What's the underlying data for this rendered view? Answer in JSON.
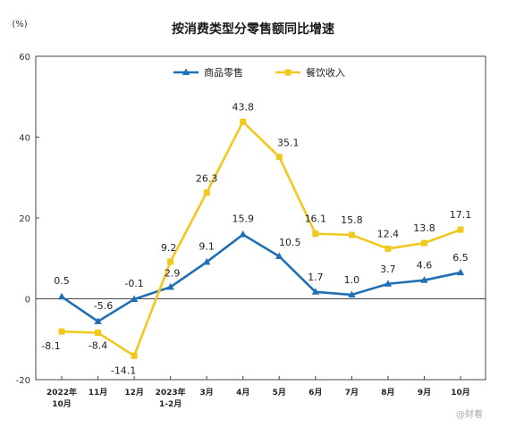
{
  "chart_data": {
    "type": "line",
    "title": "按消费类型分零售额同比增速",
    "unit": "(%)",
    "categories": [
      [
        "2022年",
        "10月"
      ],
      [
        "11月"
      ],
      [
        "12月"
      ],
      [
        "2023年",
        "1-2月"
      ],
      [
        "3月"
      ],
      [
        "4月"
      ],
      [
        "5月"
      ],
      [
        "6月"
      ],
      [
        "7月"
      ],
      [
        "8月"
      ],
      [
        "9月"
      ],
      [
        "10月"
      ]
    ],
    "ylim": [
      -20,
      60
    ],
    "yticks": [
      -20,
      0,
      20,
      40,
      60
    ],
    "grid": false,
    "legend": "top-center",
    "series": [
      {
        "name": "商品零售",
        "color": "#1f6fb5",
        "marker": "triangle",
        "values": [
          0.5,
          -5.6,
          -0.1,
          2.9,
          9.1,
          15.9,
          10.5,
          1.7,
          1.0,
          3.7,
          4.6,
          6.5
        ],
        "labels": [
          "0.5",
          "-5.6",
          "-0.1",
          "2.9",
          "9.1",
          "15.9",
          "10.5",
          "1.7",
          "1.0",
          "3.7",
          "4.6",
          "6.5"
        ]
      },
      {
        "name": "餐饮收入",
        "color": "#f2c81e",
        "marker": "square",
        "values": [
          -8.1,
          -8.4,
          -14.1,
          9.2,
          26.3,
          43.8,
          35.1,
          16.1,
          15.8,
          12.4,
          13.8,
          17.1
        ],
        "labels": [
          "-8.1",
          "-8.4",
          "-14.1",
          "9.2",
          "26.3",
          "43.8",
          "35.1",
          "16.1",
          "15.8",
          "12.4",
          "13.8",
          "17.1"
        ]
      }
    ]
  },
  "watermark": "@财看"
}
